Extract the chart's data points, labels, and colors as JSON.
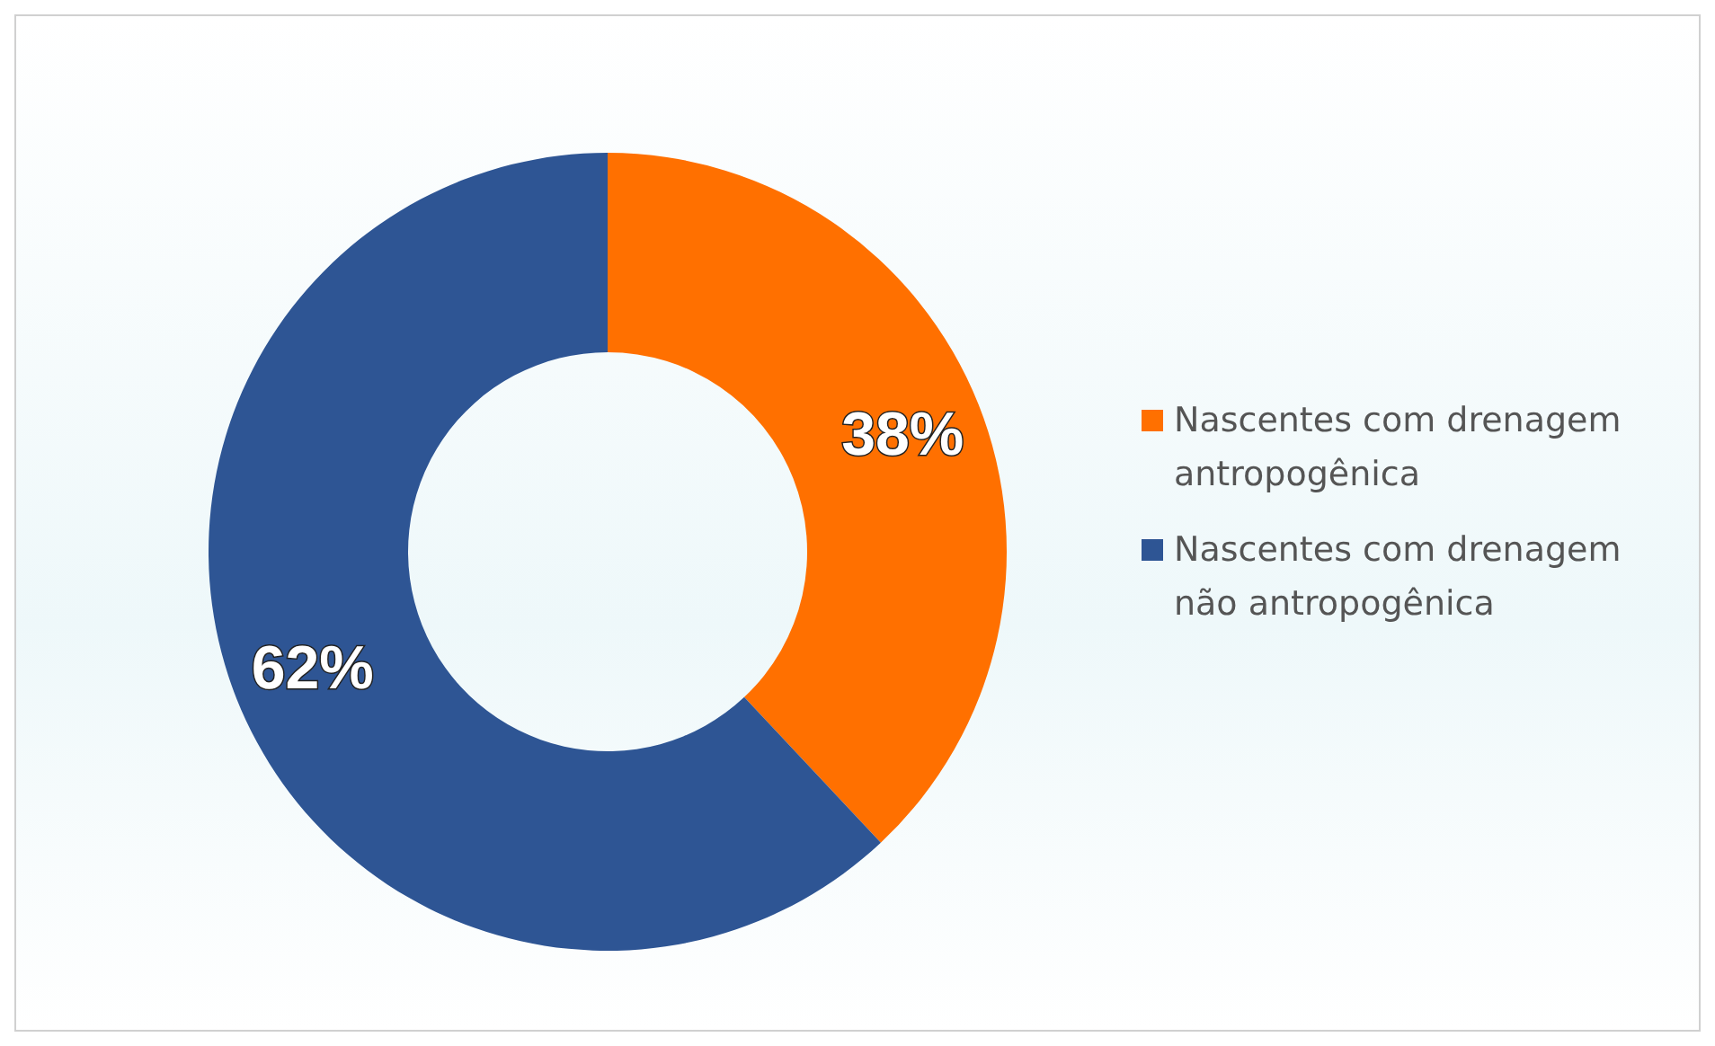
{
  "chart_data": {
    "type": "donut",
    "categories": [
      "Nascentes com drenagem antropogênica",
      "Nascentes com drenagem não antropogênica"
    ],
    "values": [
      38,
      62
    ],
    "colors": [
      "#ff7000",
      "#2e5594"
    ],
    "value_labels": [
      "38%",
      "62%"
    ],
    "legend": "right"
  }
}
